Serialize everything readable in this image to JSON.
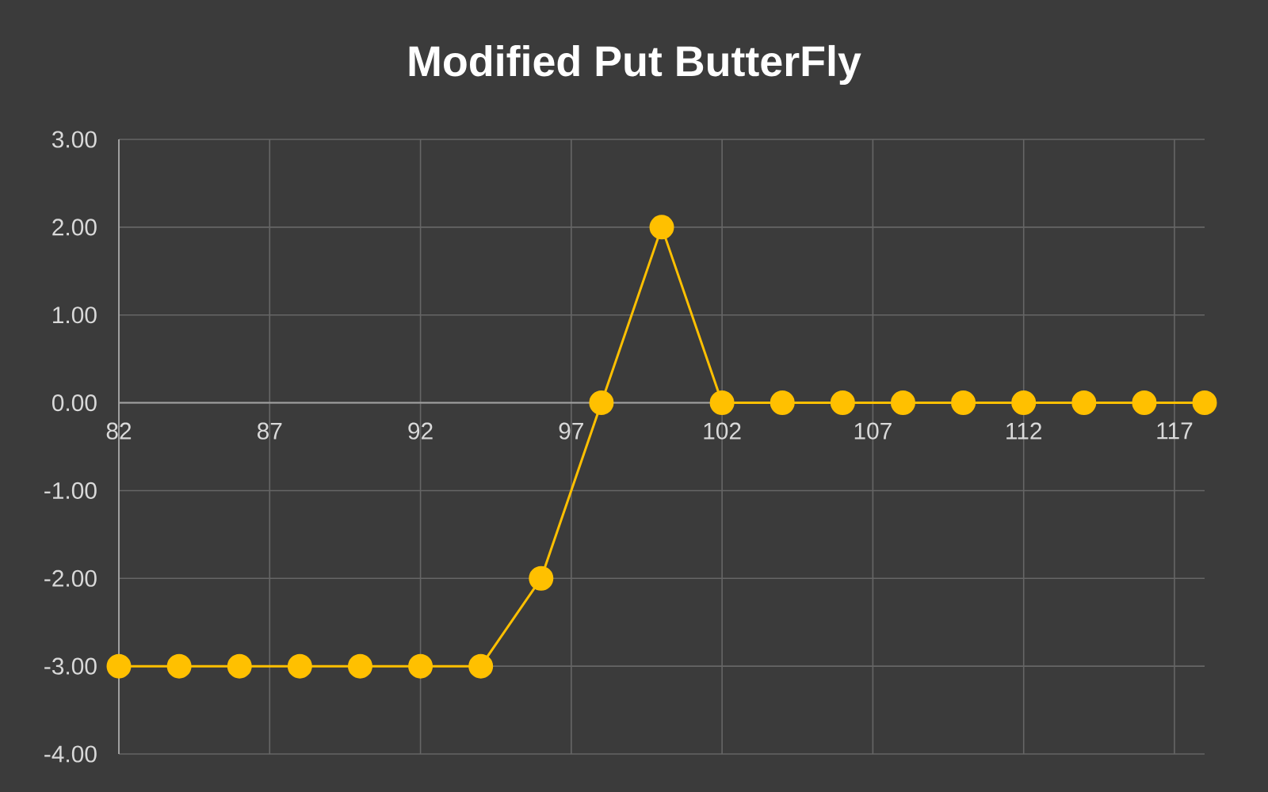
{
  "chart_data": {
    "type": "line",
    "title": "Modified Put ButterFly",
    "x": [
      82,
      84,
      86,
      88,
      90,
      92,
      94,
      96,
      98,
      100,
      102,
      104,
      106,
      108,
      110,
      112,
      114,
      116,
      118
    ],
    "series": [
      {
        "color": "#ffc000",
        "values": [
          -3,
          -3,
          -3,
          -3,
          -3,
          -3,
          -3,
          -2,
          0,
          2,
          0,
          0,
          0,
          0,
          0,
          0,
          0,
          0,
          0
        ]
      }
    ],
    "xlim": [
      82,
      118
    ],
    "xticks": [
      82,
      87,
      92,
      97,
      102,
      107,
      112,
      117
    ],
    "ylim": [
      -4,
      3
    ],
    "yticks": [
      {
        "value": 3,
        "label": "3.00"
      },
      {
        "value": 2,
        "label": "2.00"
      },
      {
        "value": 1,
        "label": "1.00"
      },
      {
        "value": 0,
        "label": "0.00"
      },
      {
        "value": -1,
        "label": "-1.00"
      },
      {
        "value": -2,
        "label": "-2.00"
      },
      {
        "value": -3,
        "label": "-3.00"
      },
      {
        "value": -4,
        "label": "-4.00"
      }
    ],
    "grid": true,
    "marker": "circle",
    "line_style": "solid"
  }
}
